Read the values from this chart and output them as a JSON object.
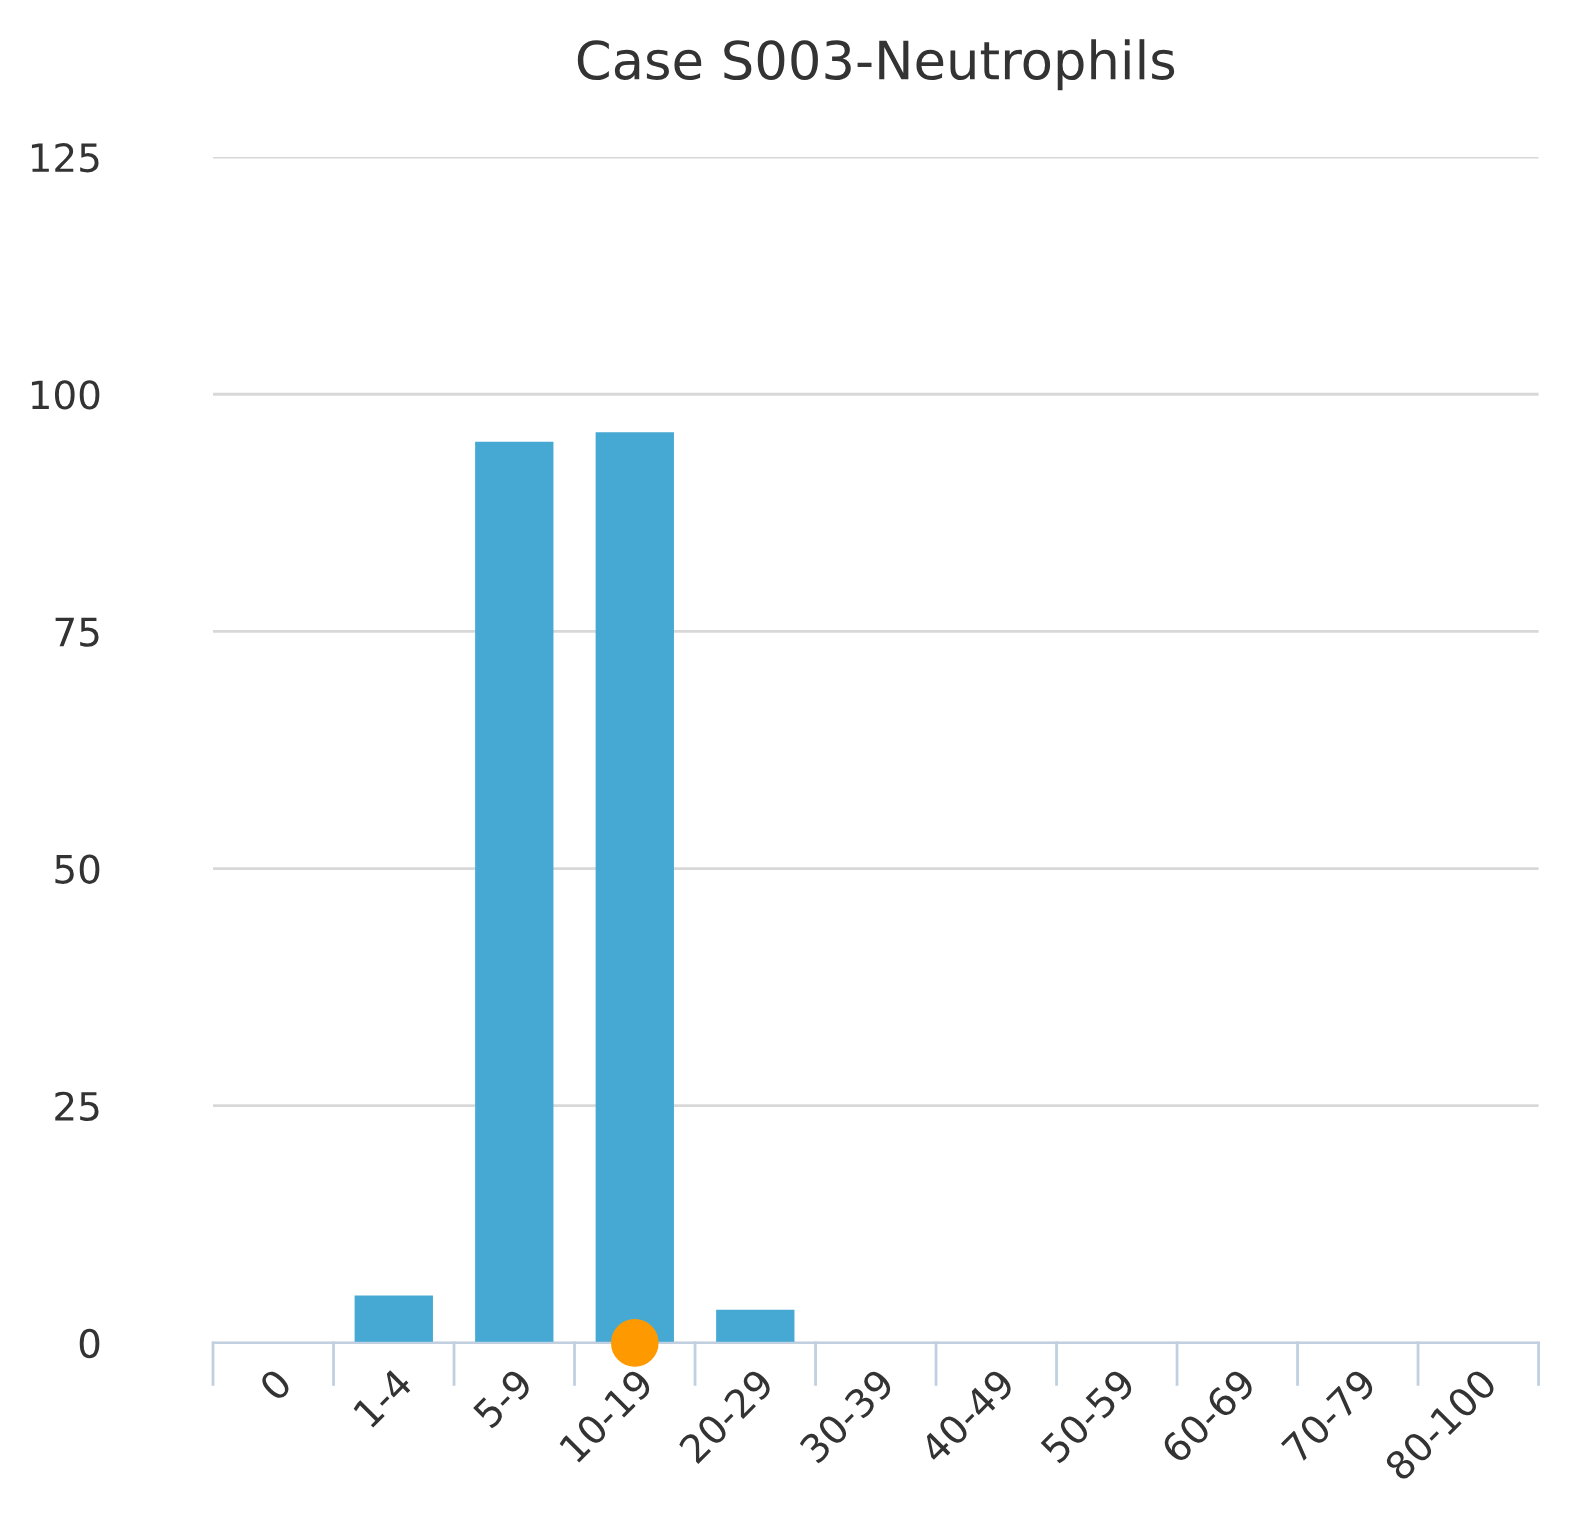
{
  "chart_data": {
    "type": "bar",
    "title": "Case S003-Neutrophils",
    "categories": [
      "0",
      "1-4",
      "5-9",
      "10-19",
      "20-29",
      "30-39",
      "40-49",
      "50-59",
      "60-69",
      "70-79",
      "80-100"
    ],
    "series": [
      {
        "color": "#45a9d4",
        "values": [
          0,
          5,
          95,
          96,
          3.5,
          0,
          0,
          0,
          0,
          0,
          0
        ]
      },
      {
        "type": "scatter",
        "color": "#ff9900",
        "x": [
          "10-19"
        ],
        "values": [
          0
        ],
        "marker": "circle"
      }
    ],
    "ylim": [
      0,
      125
    ],
    "yticks": [
      0,
      25,
      50,
      75,
      100,
      125
    ],
    "grid": "y",
    "legend": false
  }
}
